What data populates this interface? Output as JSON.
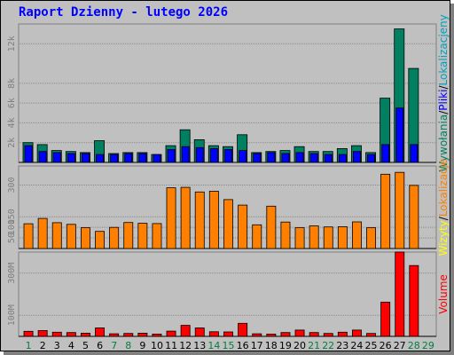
{
  "title": "Raport Dzienny - lutego 2026",
  "colors": {
    "background": "#c0c0c0",
    "title": "#0000ff",
    "wywolania": "#008060",
    "pliki": "#0000ff",
    "lokalizacjeny": "#00a0c0",
    "wizyty": "#ffff00",
    "lokalizacje": "#ff8000",
    "volume": "#ff0000",
    "weekday_label": "#000000",
    "weekend_label": "#008040"
  },
  "chart_data": [
    {
      "type": "bar",
      "panel": "hits",
      "categories": [
        "1",
        "2",
        "3",
        "4",
        "5",
        "6",
        "7",
        "8",
        "9",
        "10",
        "11",
        "12",
        "13",
        "14",
        "15",
        "16",
        "17",
        "18",
        "19",
        "20",
        "21",
        "22",
        "23",
        "24",
        "25",
        "26",
        "27",
        "28",
        "29"
      ],
      "weekend_days": [
        "1",
        "7",
        "8",
        "14",
        "15",
        "21",
        "22",
        "28",
        "29"
      ],
      "series": [
        {
          "name": "Wywołania",
          "values": [
            2000,
            1800,
            1200,
            1100,
            1000,
            2200,
            900,
            1000,
            1000,
            800,
            1700,
            3300,
            2300,
            1700,
            1600,
            2800,
            1000,
            1100,
            1200,
            1600,
            1100,
            1100,
            1400,
            1700,
            1000,
            6500,
            13500,
            9500,
            0
          ]
        },
        {
          "name": "Pliki",
          "values": [
            1700,
            1100,
            1000,
            900,
            900,
            800,
            800,
            900,
            900,
            800,
            1300,
            1600,
            1500,
            1400,
            1300,
            1200,
            900,
            1000,
            900,
            1000,
            900,
            800,
            800,
            1100,
            800,
            1800,
            5500,
            1800,
            0
          ]
        }
      ],
      "ylim": [
        0,
        14000
      ],
      "yticks": [
        2000,
        4000,
        6000,
        8000,
        12000
      ],
      "ytick_labels": [
        "2k",
        "4k",
        "6k",
        "8k",
        "12k"
      ],
      "axis_label_parts": [
        "Wywołania",
        "/",
        "Pliki",
        "/",
        "Lokalizacjeny"
      ]
    },
    {
      "type": "bar",
      "panel": "visits",
      "categories": [
        "1",
        "2",
        "3",
        "4",
        "5",
        "6",
        "7",
        "8",
        "9",
        "10",
        "11",
        "12",
        "13",
        "14",
        "15",
        "16",
        "17",
        "18",
        "19",
        "20",
        "21",
        "22",
        "23",
        "24",
        "25",
        "26",
        "27",
        "28",
        "29"
      ],
      "series": [
        {
          "name": "Lokalizacje",
          "values": [
            117,
            142,
            122,
            114,
            98,
            81,
            100,
            123,
            119,
            118,
            287,
            289,
            267,
            271,
            231,
            205,
            112,
            200,
            125,
            98,
            107,
            102,
            103,
            126,
            98,
            351,
            360,
            298,
            0
          ]
        }
      ],
      "ylim": [
        0,
        390
      ],
      "yticks": [
        50,
        100,
        150,
        300
      ],
      "ytick_labels": [
        "50",
        "100",
        "150",
        "300"
      ],
      "axis_label_parts": [
        "Wizyty",
        "/",
        "Lokalizacje"
      ]
    },
    {
      "type": "bar",
      "panel": "volume",
      "categories": [
        "1",
        "2",
        "3",
        "4",
        "5",
        "6",
        "7",
        "8",
        "9",
        "10",
        "11",
        "12",
        "13",
        "14",
        "15",
        "16",
        "17",
        "18",
        "19",
        "20",
        "21",
        "22",
        "23",
        "24",
        "25",
        "26",
        "27",
        "28",
        "29"
      ],
      "series": [
        {
          "name": "Volume",
          "values": [
            24,
            28,
            20,
            18,
            15,
            40,
            12,
            14,
            15,
            11,
            25,
            52,
            40,
            22,
            21,
            62,
            12,
            11,
            18,
            30,
            18,
            14,
            20,
            30,
            14,
            162,
            400,
            336,
            0
          ]
        }
      ],
      "unit": "M",
      "ylim": [
        0,
        400
      ],
      "yticks": [
        100,
        300
      ],
      "ytick_labels": [
        "100M",
        "300M"
      ],
      "axis_label_parts": [
        "Volume"
      ]
    }
  ]
}
